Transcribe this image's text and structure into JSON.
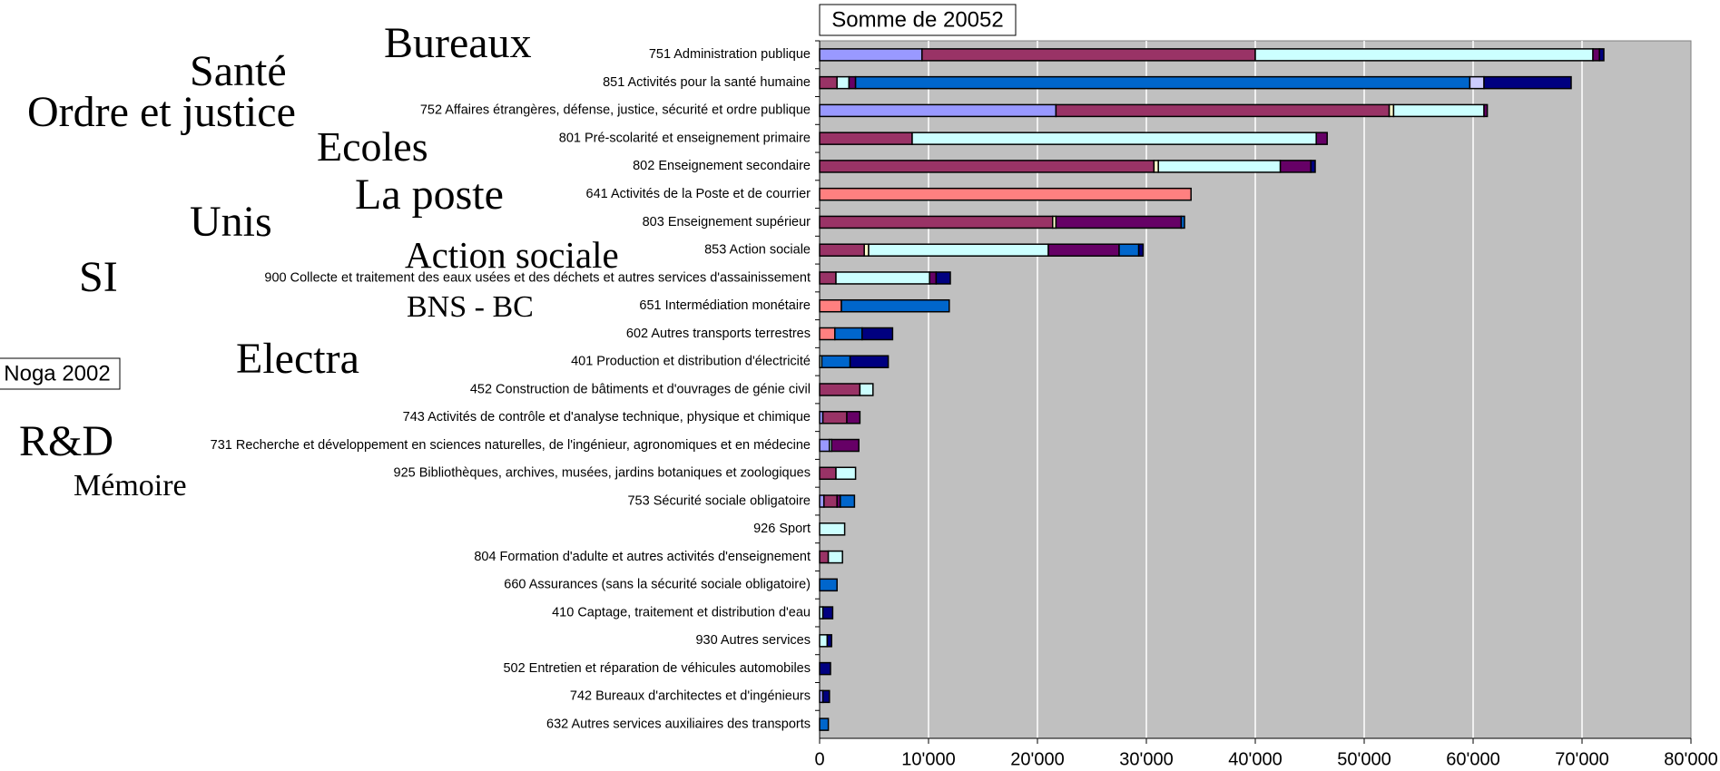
{
  "chart_data": {
    "type": "stacked_bar_horizontal",
    "title": "Somme de 20052",
    "axis_box": "Noga 2002",
    "categories": [
      "751 Administration publique",
      "851 Activités pour la santé humaine",
      "752 Affaires étrangères, défense, justice, sécurité et ordre publique",
      "801 Pré-scolarité et enseignement primaire",
      "802 Enseignement secondaire",
      "641 Activités de la Poste et de courrier",
      "803 Enseignement supérieur",
      "853 Action sociale",
      "900 Collecte et traitement des eaux usées et des déchets et autres services d'assainissement",
      "651 Intermédiation monétaire",
      "602 Autres transports terrestres",
      "401 Production et distribution d'électricité",
      "452 Construction de bâtiments et d'ouvrages de génie civil",
      "743 Activités de contrôle et d'analyse technique, physique et chimique",
      "731 Recherche et développement en sciences naturelles, de l'ingénieur, agronomiques et en médecine",
      "925 Bibliothèques, archives, musées, jardins botaniques et zoologiques",
      "753 Sécurité sociale obligatoire",
      "926 Sport",
      "804 Formation d'adulte et autres activités d'enseignement",
      "660 Assurances (sans la sécurité sociale obligatoire)",
      "410 Captage, traitement et distribution d'eau",
      "930 Autres services",
      "502 Entretien et réparation de véhicules automobiles",
      "742 Bureaux d'architectes et d'ingénieurs",
      "632 Autres services auxiliaires des transports"
    ],
    "series": [
      {
        "color": "#9999ff",
        "values": [
          9400,
          0,
          21700,
          0,
          0,
          0,
          0,
          0,
          0,
          0,
          0,
          0,
          0,
          300,
          900,
          0,
          400,
          0,
          0,
          0,
          0,
          0,
          0,
          300,
          0
        ]
      },
      {
        "color": "#993366",
        "values": [
          30600,
          1600,
          30600,
          8500,
          30700,
          0,
          21400,
          4100,
          1500,
          0,
          0,
          0,
          3700,
          2200,
          0,
          1500,
          1200,
          0,
          800,
          0,
          0,
          0,
          0,
          0,
          0
        ]
      },
      {
        "color": "#ffffcc",
        "values": [
          0,
          0,
          400,
          0,
          400,
          0,
          300,
          400,
          0,
          0,
          0,
          0,
          0,
          0,
          0,
          0,
          0,
          0,
          0,
          0,
          0,
          0,
          0,
          0,
          0
        ]
      },
      {
        "color": "#ccffff",
        "values": [
          31000,
          1100,
          8300,
          37100,
          11200,
          0,
          0,
          16500,
          8600,
          0,
          0,
          200,
          1200,
          0,
          200,
          1800,
          0,
          2300,
          1300,
          0,
          300,
          700,
          0,
          0,
          0
        ]
      },
      {
        "color": "#660066",
        "values": [
          600,
          600,
          300,
          1000,
          2800,
          0,
          11500,
          6500,
          600,
          0,
          0,
          0,
          0,
          1200,
          2500,
          0,
          300,
          0,
          0,
          0,
          0,
          0,
          0,
          0,
          0
        ]
      },
      {
        "color": "#ff8080",
        "values": [
          0,
          0,
          0,
          0,
          0,
          34100,
          0,
          0,
          0,
          2000,
          1400,
          0,
          0,
          0,
          0,
          0,
          0,
          0,
          0,
          0,
          0,
          0,
          0,
          0,
          0
        ]
      },
      {
        "color": "#0066cc",
        "values": [
          0,
          56400,
          0,
          0,
          0,
          0,
          300,
          1800,
          0,
          9900,
          2500,
          2600,
          0,
          0,
          0,
          0,
          1300,
          0,
          0,
          1600,
          0,
          0,
          0,
          0,
          800
        ]
      },
      {
        "color": "#ccccff",
        "values": [
          0,
          1300,
          0,
          0,
          0,
          0,
          0,
          0,
          0,
          0,
          0,
          0,
          0,
          0,
          0,
          0,
          0,
          0,
          0,
          0,
          0,
          0,
          0,
          0,
          0
        ]
      },
      {
        "color": "#000080",
        "values": [
          400,
          8000,
          0,
          0,
          400,
          0,
          0,
          400,
          1300,
          0,
          2800,
          3500,
          0,
          0,
          0,
          0,
          0,
          0,
          0,
          0,
          900,
          400,
          1000,
          600,
          0
        ]
      }
    ],
    "xlim": [
      0,
      80000
    ],
    "xticks": [
      0,
      {
        "value": 10000,
        "label": "10'000"
      },
      {
        "value": 20000,
        "label": "20'000"
      },
      {
        "value": 30000,
        "label": "30'000"
      },
      {
        "value": 40000,
        "label": "40'000"
      },
      {
        "value": 50000,
        "label": "50'000"
      },
      {
        "value": 60000,
        "label": "60'000"
      },
      {
        "value": 70000,
        "label": "70'000"
      },
      {
        "value": 80000,
        "label": "80'000"
      }
    ],
    "grid": true,
    "annotations": [
      "Bureaux",
      "Santé",
      "Ordre et justice",
      "Ecoles",
      "La poste",
      "Unis",
      "Action sociale",
      "SI",
      "BNS - BC",
      "Electra",
      "R&D",
      "Mémoire"
    ]
  }
}
